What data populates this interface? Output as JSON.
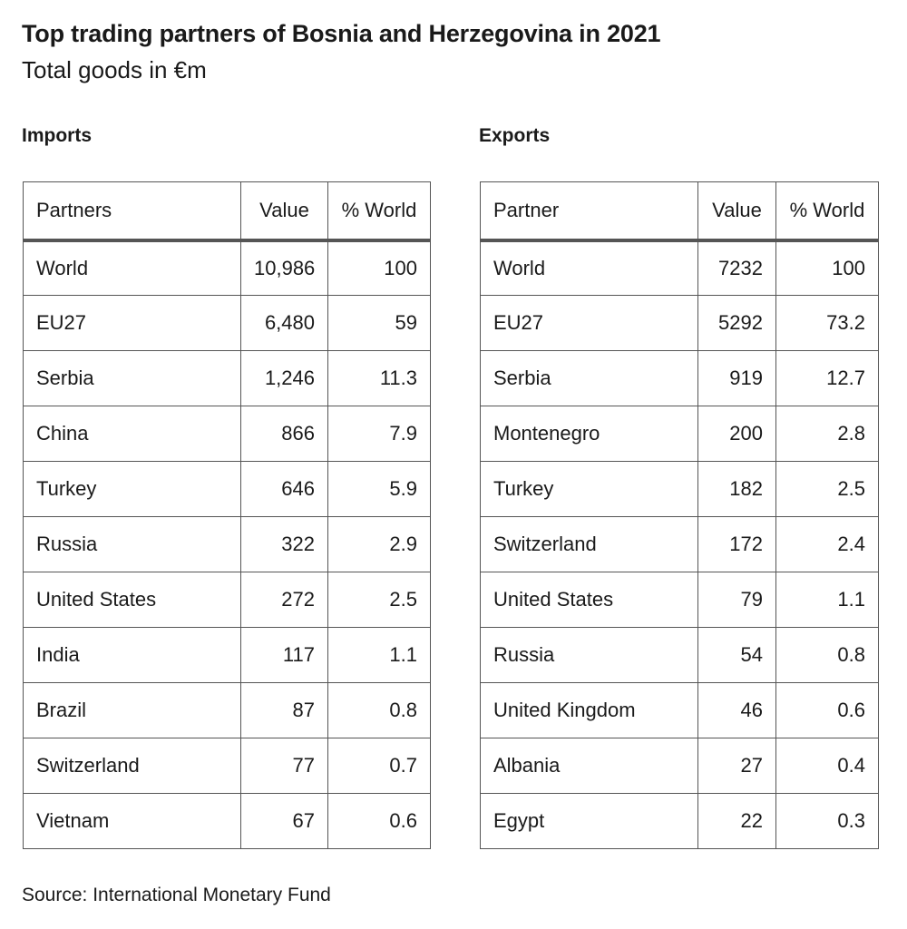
{
  "title": "Top trading partners of Bosnia and Herzegovina in 2021",
  "subtitle": "Total goods in €m",
  "source": "Source: International Monetary Fund",
  "chart_data": [
    {
      "type": "table",
      "label": "Imports",
      "columns": [
        "Partners",
        "Value",
        "% World"
      ],
      "rows": [
        [
          "World",
          "10,986",
          "100"
        ],
        [
          "EU27",
          "6,480",
          "59"
        ],
        [
          "Serbia",
          "1,246",
          "11.3"
        ],
        [
          "China",
          "866",
          "7.9"
        ],
        [
          "Turkey",
          "646",
          "5.9"
        ],
        [
          "Russia",
          "322",
          "2.9"
        ],
        [
          "United States",
          "272",
          "2.5"
        ],
        [
          "India",
          "117",
          "1.1"
        ],
        [
          "Brazil",
          "87",
          "0.8"
        ],
        [
          "Switzerland",
          "77",
          "0.7"
        ],
        [
          "Vietnam",
          "67",
          "0.6"
        ]
      ]
    },
    {
      "type": "table",
      "label": "Exports",
      "columns": [
        "Partner",
        "Value",
        "% World"
      ],
      "rows": [
        [
          "World",
          "7232",
          "100"
        ],
        [
          "EU27",
          "5292",
          "73.2"
        ],
        [
          "Serbia",
          "919",
          "12.7"
        ],
        [
          "Montenegro",
          "200",
          "2.8"
        ],
        [
          "Turkey",
          "182",
          "2.5"
        ],
        [
          "Switzerland",
          "172",
          "2.4"
        ],
        [
          "United States",
          "79",
          "1.1"
        ],
        [
          "Russia",
          "54",
          "0.8"
        ],
        [
          "United Kingdom",
          "46",
          "0.6"
        ],
        [
          "Albania",
          "27",
          "0.4"
        ],
        [
          "Egypt",
          "22",
          "0.3"
        ]
      ]
    }
  ]
}
